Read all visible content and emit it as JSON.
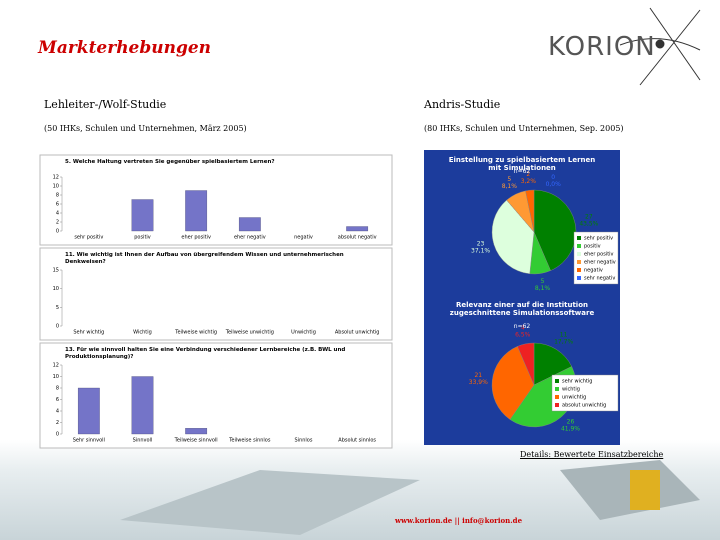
{
  "header": {
    "title": "Markterhebungen",
    "logo": "KORION"
  },
  "left": {
    "heading": "Lehleiter-/Wolf-Studie",
    "subheading": "(50 IHKs, Schulen und Unternehmen, März 2005)"
  },
  "right": {
    "heading": "Andris-Studie",
    "subheading": "(80 IHKs, Schulen und Unternehmen, Sep. 2005)"
  },
  "chart_data": [
    {
      "type": "bar",
      "title": "5. Welche Haltung vertreten Sie gegenüber spielbasiertem Lernen?",
      "categories": [
        "sehr positiv",
        "positiv",
        "eher positiv",
        "eher negativ",
        "negativ",
        "absolut negativ"
      ],
      "values": [
        0,
        7,
        9,
        3,
        0,
        1
      ],
      "color": "#7474c8",
      "ylim": [
        0,
        12
      ],
      "yticks": [
        0,
        2,
        4,
        6,
        8,
        10,
        12
      ]
    },
    {
      "type": "bar",
      "title": "11. Wie wichtig ist Ihnen der Aufbau von übergreifendem Wissen und unternehmerischen Denkweisen?",
      "categories": [
        "Sehr wichtig",
        "Wichtig",
        "Teilweise wichtig",
        "Teilweise unwichtig",
        "Unwichtig",
        "Absolut unwichtig"
      ],
      "color": "#7474c8",
      "ylim": [
        0,
        15
      ],
      "yticks": [
        0,
        5,
        10,
        15
      ]
    },
    {
      "type": "bar",
      "title": "13. Für wie sinnvoll halten Sie eine Verbindung verschiedener Lernbereiche (z.B. BWL und Produktionsplanung)?",
      "categories": [
        "Sehr sinnvoll",
        "Sinnvoll",
        "Teilweise sinnvoll",
        "Teilweise sinnlos",
        "Sinnlos",
        "Absolut sinnlos"
      ],
      "values": [
        8,
        10,
        1,
        0,
        0,
        0
      ],
      "color": "#7474c8",
      "ylim": [
        0,
        12
      ],
      "yticks": [
        0,
        2,
        4,
        6,
        8,
        10,
        12
      ]
    },
    {
      "type": "pie",
      "title": "Einstellung zu spielbasiertem Lernen mit Simulationen",
      "subtitle": "n=62",
      "categories": [
        "sehr positiv",
        "positiv",
        "eher positiv",
        "eher negativ",
        "negativ",
        "sehr negativ"
      ],
      "values": [
        27,
        5,
        23,
        5,
        2,
        0
      ],
      "shares": [
        43.5,
        8.1,
        37.1,
        8.1,
        3.2,
        0.0
      ],
      "share_labels": [
        "43,5%",
        "8,1%",
        "37,1%",
        "8,1%",
        "3,2%",
        "0,0%"
      ],
      "colors": [
        "#008000",
        "#33cc33",
        "#ddffdd",
        "#ff9933",
        "#ff6600",
        "#3366ff"
      ]
    },
    {
      "type": "pie",
      "title": "Relevanz einer auf die Institution zugeschnittene Simulationssoftware",
      "subtitle": "n=62",
      "categories": [
        "sehr wichtig",
        "wichtig",
        "unwichtig",
        "absolut unwichtig"
      ],
      "values": [
        11,
        26,
        21,
        4
      ],
      "shares": [
        17.7,
        41.9,
        33.9,
        6.5
      ],
      "share_labels": [
        "17,7%",
        "41,9%",
        "33,9%",
        "6,5%"
      ],
      "colors": [
        "#008000",
        "#33cc33",
        "#ff6600",
        "#ee2222"
      ]
    }
  ],
  "link": "Details: Bewertete Einsatzbereiche",
  "footer": "www.korion.de || info@korion.de"
}
